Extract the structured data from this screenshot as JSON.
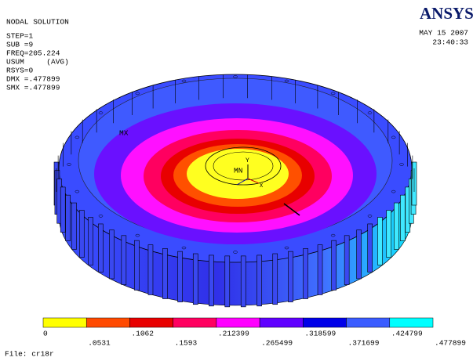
{
  "header": {
    "title": "NODAL SOLUTION",
    "lines": [
      "STEP=1",
      "SUB =9",
      "FREQ=205.224",
      "USUM     (AVG)",
      "RSYS=0",
      "DMX =.477899",
      "SMX =.477899"
    ]
  },
  "logo": "ANSYS",
  "date": "MAY 15 2007",
  "time": "23:40:33",
  "model": {
    "labels": [
      "MX",
      "MN",
      "Y",
      "X"
    ]
  },
  "legend": {
    "colors": [
      "#ffff00",
      "#ff4a00",
      "#e80000",
      "#ff0060",
      "#ff00ff",
      "#6000ff",
      "#0000e8",
      "#3a5cff",
      "#00ffff"
    ],
    "labels": [
      "0",
      ".0531",
      ".1062",
      ".1593",
      ".212399",
      ".265499",
      ".318599",
      ".371699",
      ".424799",
      ".477899"
    ]
  },
  "footer": "File: cr18r"
}
